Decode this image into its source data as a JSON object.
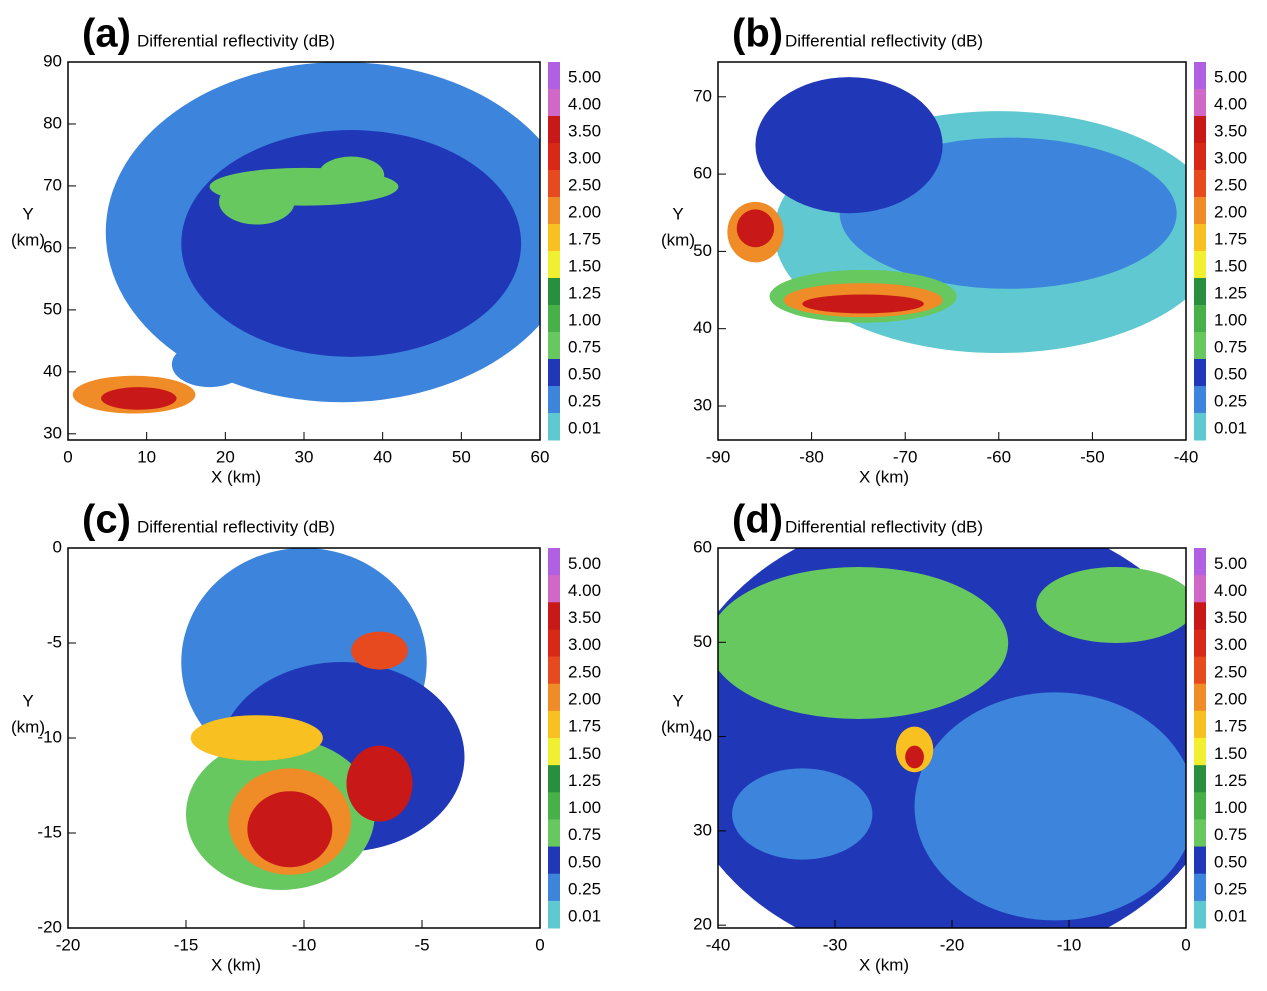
{
  "chart_data": [
    {
      "type": "contour",
      "panel": "(a)",
      "title": "Differential reflectivity (dB)",
      "xlabel": "X (km)",
      "ylabel": [
        "Y",
        "(km)"
      ],
      "xlim": [
        0,
        60
      ],
      "xticks": [
        0,
        10,
        20,
        30,
        40,
        50,
        60
      ],
      "ylim": [
        29,
        90
      ],
      "yticks": [
        30,
        40,
        50,
        60,
        70,
        80,
        90
      ]
    },
    {
      "type": "contour",
      "panel": "(b)",
      "title": "Differential reflectivity (dB)",
      "xlabel": "X (km)",
      "ylabel": [
        "Y",
        "(km)"
      ],
      "xlim": [
        -90,
        -40
      ],
      "xticks": [
        -90,
        -80,
        -70,
        -60,
        -50,
        -40
      ],
      "ylim": [
        25.6,
        74.5
      ],
      "yticks": [
        30,
        40,
        50,
        60,
        70
      ]
    },
    {
      "type": "contour",
      "panel": "(c)",
      "title": "Differential reflectivity (dB)",
      "xlabel": "X (km)",
      "ylabel": [
        "Y",
        "(km)"
      ],
      "xlim": [
        -20,
        0
      ],
      "xticks": [
        -20,
        -15,
        -10,
        -5,
        0
      ],
      "ylim": [
        -20,
        0
      ],
      "yticks": [
        -20,
        -15,
        -10,
        -5,
        0
      ]
    },
    {
      "type": "contour",
      "panel": "(d)",
      "title": "Differential reflectivity (dB)",
      "xlabel": "X (km)",
      "ylabel": [
        "Y",
        "(km)"
      ],
      "xlim": [
        -40,
        0
      ],
      "xticks": [
        -40,
        -30,
        -20,
        -10,
        0
      ],
      "ylim": [
        19.7,
        60
      ],
      "yticks": [
        20,
        30,
        40,
        50,
        60
      ]
    }
  ],
  "colorbar": {
    "levels": [
      {
        "value": 5,
        "label": "5.00"
      },
      {
        "value": 4,
        "label": "4.00"
      },
      {
        "value": 3.5,
        "label": "3.50"
      },
      {
        "value": 3,
        "label": "3.00"
      },
      {
        "value": 2.5,
        "label": "2.50"
      },
      {
        "value": 2,
        "label": "2.00"
      },
      {
        "value": 1.75,
        "label": "1.75"
      },
      {
        "value": 1.5,
        "label": "1.50"
      },
      {
        "value": 1.25,
        "label": "1.25"
      },
      {
        "value": 1,
        "label": "1.00"
      },
      {
        "value": 0.75,
        "label": "0.75"
      },
      {
        "value": 0.5,
        "label": "0.50"
      },
      {
        "value": 0.25,
        "label": "0.25"
      },
      {
        "value": 0.01,
        "label": "0.01"
      }
    ],
    "colors": [
      "#b060e0",
      "#d068c8",
      "#c81818",
      "#d82818",
      "#e84a20",
      "#f08c28",
      "#f8c020",
      "#f0f030",
      "#28903c",
      "#48b048",
      "#68c860",
      "#2038b8",
      "#3c84dc",
      "#60c8d0"
    ]
  }
}
